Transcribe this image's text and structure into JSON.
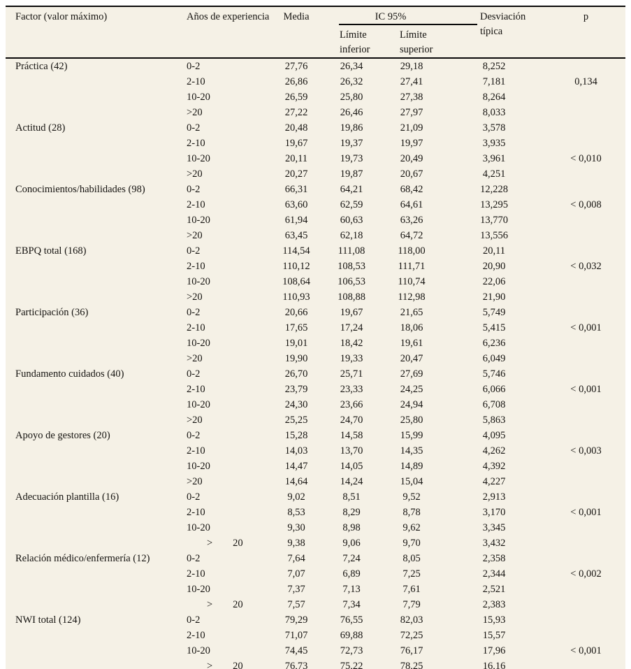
{
  "table": {
    "headers": {
      "factor": "Factor (valor máximo)",
      "experience": "Años de experiencia",
      "media": "Media",
      "ic95": "IC 95%",
      "limite_inferior": "Límite inferior",
      "limite_superior": "Límite superior",
      "desviacion": "Desviación típica",
      "p": "p"
    },
    "colors": {
      "background": "#f5f1e6",
      "rule": "#0a0a0a",
      "text": "#151310"
    },
    "groups": [
      {
        "factor": "Práctica (42)",
        "rows": [
          {
            "exp": "0-2",
            "media": "27,76",
            "li": "26,34",
            "ls": "29,18",
            "dt": "8,252",
            "p": ""
          },
          {
            "exp": "2-10",
            "media": "26,86",
            "li": "26,32",
            "ls": "27,41",
            "dt": "7,181",
            "p": "0,134"
          },
          {
            "exp": "10-20",
            "media": "26,59",
            "li": "25,80",
            "ls": "27,38",
            "dt": "8,264",
            "p": ""
          },
          {
            "exp": ">20",
            "media": "27,22",
            "li": "26,46",
            "ls": "27,97",
            "dt": "8,033",
            "p": ""
          }
        ]
      },
      {
        "factor": "Actitud (28)",
        "rows": [
          {
            "exp": "0-2",
            "media": "20,48",
            "li": "19,86",
            "ls": "21,09",
            "dt": "3,578",
            "p": ""
          },
          {
            "exp": "2-10",
            "media": "19,67",
            "li": "19,37",
            "ls": "19,97",
            "dt": "3,935",
            "p": ""
          },
          {
            "exp": "10-20",
            "media": "20,11",
            "li": "19,73",
            "ls": "20,49",
            "dt": "3,961",
            "p": "< 0,010"
          },
          {
            "exp": ">20",
            "media": "20,27",
            "li": "19,87",
            "ls": "20,67",
            "dt": "4,251",
            "p": ""
          }
        ]
      },
      {
        "factor": "Conocimientos/habilidades (98)",
        "rows": [
          {
            "exp": "0-2",
            "media": "66,31",
            "li": "64,21",
            "ls": "68,42",
            "dt": "12,228",
            "p": ""
          },
          {
            "exp": "2-10",
            "media": "63,60",
            "li": "62,59",
            "ls": "64,61",
            "dt": "13,295",
            "p": "< 0,008"
          },
          {
            "exp": "10-20",
            "media": "61,94",
            "li": "60,63",
            "ls": "63,26",
            "dt": "13,770",
            "p": ""
          },
          {
            "exp": ">20",
            "media": "63,45",
            "li": "62,18",
            "ls": "64,72",
            "dt": "13,556",
            "p": ""
          }
        ]
      },
      {
        "factor": "EBPQ total (168)",
        "rows": [
          {
            "exp": "0-2",
            "media": "114,54",
            "li": "111,08",
            "ls": "118,00",
            "dt": "20,11",
            "p": ""
          },
          {
            "exp": "2-10",
            "media": "110,12",
            "li": "108,53",
            "ls": "111,71",
            "dt": "20,90",
            "p": "< 0,032"
          },
          {
            "exp": "10-20",
            "media": "108,64",
            "li": "106,53",
            "ls": "110,74",
            "dt": "22,06",
            "p": ""
          },
          {
            "exp": ">20",
            "media": "110,93",
            "li": "108,88",
            "ls": "112,98",
            "dt": "21,90",
            "p": ""
          }
        ]
      },
      {
        "factor": "Participación (36)",
        "rows": [
          {
            "exp": "0-2",
            "media": "20,66",
            "li": "19,67",
            "ls": "21,65",
            "dt": "5,749",
            "p": ""
          },
          {
            "exp": "2-10",
            "media": "17,65",
            "li": "17,24",
            "ls": "18,06",
            "dt": "5,415",
            "p": "< 0,001"
          },
          {
            "exp": "10-20",
            "media": "19,01",
            "li": "18,42",
            "ls": "19,61",
            "dt": "6,236",
            "p": ""
          },
          {
            "exp": ">20",
            "media": "19,90",
            "li": "19,33",
            "ls": "20,47",
            "dt": "6,049",
            "p": ""
          }
        ]
      },
      {
        "factor": "Fundamento cuidados (40)",
        "rows": [
          {
            "exp": "0-2",
            "media": "26,70",
            "li": "25,71",
            "ls": "27,69",
            "dt": "5,746",
            "p": ""
          },
          {
            "exp": "2-10",
            "media": "23,79",
            "li": "23,33",
            "ls": "24,25",
            "dt": "6,066",
            "p": "< 0,001"
          },
          {
            "exp": "10-20",
            "media": "24,30",
            "li": "23,66",
            "ls": "24,94",
            "dt": "6,708",
            "p": ""
          },
          {
            "exp": ">20",
            "media": "25,25",
            "li": "24,70",
            "ls": "25,80",
            "dt": "5,863",
            "p": ""
          }
        ]
      },
      {
        "factor": "Apoyo de gestores (20)",
        "rows": [
          {
            "exp": "0-2",
            "media": "15,28",
            "li": "14,58",
            "ls": "15,99",
            "dt": "4,095",
            "p": ""
          },
          {
            "exp": "2-10",
            "media": "14,03",
            "li": "13,70",
            "ls": "14,35",
            "dt": "4,262",
            "p": "< 0,003"
          },
          {
            "exp": "10-20",
            "media": "14,47",
            "li": "14,05",
            "ls": "14,89",
            "dt": "4,392",
            "p": ""
          },
          {
            "exp": ">20",
            "media": "14,64",
            "li": "14,24",
            "ls": "15,04",
            "dt": "4,227",
            "p": ""
          }
        ]
      },
      {
        "factor": "Adecuación plantilla (16)",
        "rows": [
          {
            "exp": "0-2",
            "media": "9,02",
            "li": "8,51",
            "ls": "9,52",
            "dt": "2,913",
            "p": ""
          },
          {
            "exp": "2-10",
            "media": "8,53",
            "li": "8,29",
            "ls": "8,78",
            "dt": "3,170",
            "p": "< 0,001"
          },
          {
            "exp": "10-20",
            "media": "9,30",
            "li": "8,98",
            "ls": "9,62",
            "dt": "3,345",
            "p": ""
          },
          {
            "exp": "  >  20",
            "media": "9,38",
            "li": "9,06",
            "ls": "9,70",
            "dt": "3,432",
            "p": ""
          }
        ]
      },
      {
        "factor": "Relación médico/enfermería (12)",
        "rows": [
          {
            "exp": "0-2",
            "media": "7,64",
            "li": "7,24",
            "ls": "8,05",
            "dt": "2,358",
            "p": ""
          },
          {
            "exp": "2-10",
            "media": "7,07",
            "li": "6,89",
            "ls": "7,25",
            "dt": "2,344",
            "p": "< 0,002"
          },
          {
            "exp": "10-20",
            "media": "7,37",
            "li": "7,13",
            "ls": "7,61",
            "dt": "2,521",
            "p": ""
          },
          {
            "exp": "  >  20",
            "media": "7,57",
            "li": "7,34",
            "ls": "7,79",
            "dt": "2,383",
            "p": ""
          }
        ]
      },
      {
        "factor": "NWI total (124)",
        "rows": [
          {
            "exp": "0-2",
            "media": "79,29",
            "li": "76,55",
            "ls": "82,03",
            "dt": "15,93",
            "p": ""
          },
          {
            "exp": "2-10",
            "media": "71,07",
            "li": "69,88",
            "ls": "72,25",
            "dt": "15,57",
            "p": ""
          },
          {
            "exp": "10-20",
            "media": "74,45",
            "li": "72,73",
            "ls": "76,17",
            "dt": "17,96",
            "p": "< 0,001"
          },
          {
            "exp": "  >  20",
            "media": "76,73",
            "li": "75,22",
            "ls": "78,25",
            "dt": "16,16",
            "p": ""
          }
        ]
      }
    ]
  }
}
